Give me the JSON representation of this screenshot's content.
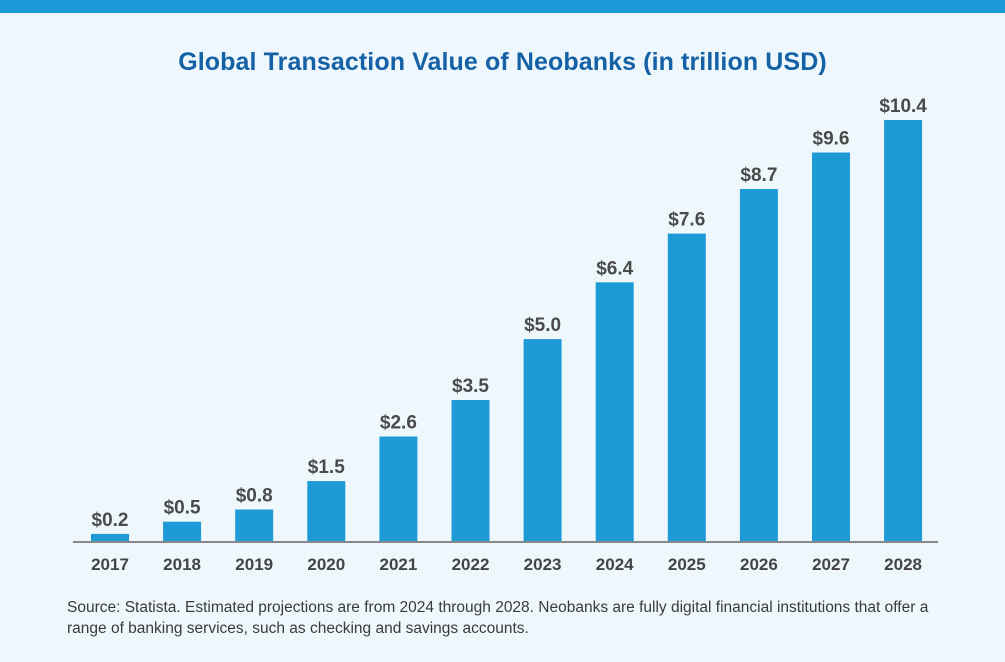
{
  "colors": {
    "top_band": "#1a99d8",
    "bar": "#1e9ad7",
    "title": "#1561a6",
    "background": "#eef8fc",
    "axis": "#888888"
  },
  "chart_data": {
    "type": "bar",
    "title": "Global Transaction Value of Neobanks (in trillion USD)",
    "xlabel": "",
    "ylabel": "",
    "ylim": [
      0,
      10.4
    ],
    "grid": false,
    "categories": [
      "2017",
      "2018",
      "2019",
      "2020",
      "2021",
      "2022",
      "2023",
      "2024",
      "2025",
      "2026",
      "2027",
      "2028"
    ],
    "values": [
      0.2,
      0.5,
      0.8,
      1.5,
      2.6,
      3.5,
      5.0,
      6.4,
      7.6,
      8.7,
      9.6,
      10.4
    ],
    "value_labels": [
      "$0.2",
      "$0.5",
      "$0.8",
      "$1.5",
      "$2.6",
      "$3.5",
      "$5.0",
      "$6.4",
      "$7.6",
      "$8.7",
      "$9.6",
      "$10.4"
    ]
  },
  "footer": {
    "source": "Source: Statista. Estimated projections are from 2024 through 2028. Neobanks are fully digital financial institutions that offer a range of banking services, such as checking and savings accounts."
  }
}
